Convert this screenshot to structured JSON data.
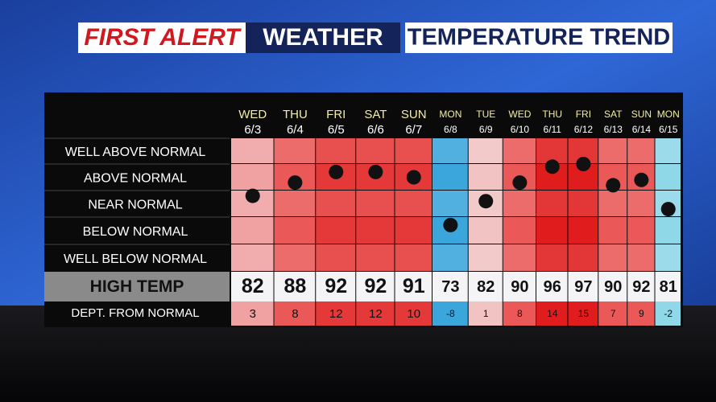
{
  "title": {
    "part1": "FIRST ALERT",
    "part2": "WEATHER",
    "part3": "TEMPERATURE TREND"
  },
  "row_labels": [
    "WELL ABOVE NORMAL",
    "ABOVE NORMAL",
    "NEAR NORMAL",
    "BELOW NORMAL",
    "WELL BELOW NORMAL"
  ],
  "high_label": "HIGH TEMP",
  "dept_label": "DEPT. FROM NORMAL",
  "days": [
    {
      "day": "WED",
      "date": "6/3",
      "high": 82,
      "departure": 3
    },
    {
      "day": "THU",
      "date": "6/4",
      "high": 88,
      "departure": 8
    },
    {
      "day": "FRI",
      "date": "6/5",
      "high": 92,
      "departure": 12
    },
    {
      "day": "SAT",
      "date": "6/6",
      "high": 92,
      "departure": 12
    },
    {
      "day": "SUN",
      "date": "6/7",
      "high": 91,
      "departure": 10
    },
    {
      "day": "MON",
      "date": "6/8",
      "high": 73,
      "departure": -8
    },
    {
      "day": "TUE",
      "date": "6/9",
      "high": 82,
      "departure": 1
    },
    {
      "day": "WED",
      "date": "6/10",
      "high": 90,
      "departure": 8
    },
    {
      "day": "THU",
      "date": "6/11",
      "high": 96,
      "departure": 14
    },
    {
      "day": "FRI",
      "date": "6/12",
      "high": 97,
      "departure": 15
    },
    {
      "day": "SAT",
      "date": "6/13",
      "high": 90,
      "departure": 7
    },
    {
      "day": "SUN",
      "date": "6/14",
      "high": 92,
      "departure": 9
    },
    {
      "day": "MON",
      "date": "6/15",
      "high": 81,
      "departure": -2
    }
  ]
}
